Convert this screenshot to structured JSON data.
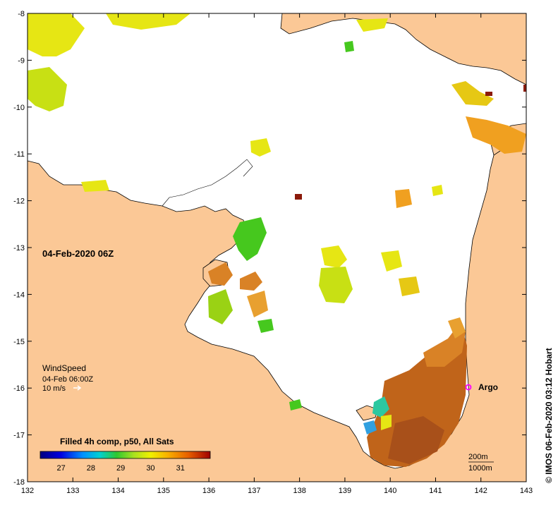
{
  "map": {
    "timestamp_label": "04-Feb-2020 06Z",
    "credit": "© IMOS 06-Feb-2020 03:12 Hobart",
    "lon_ticks": [
      "132",
      "133",
      "134",
      "135",
      "136",
      "137",
      "138",
      "139",
      "140",
      "141",
      "142",
      "143"
    ],
    "lat_ticks": [
      "-8",
      "-9",
      "-10",
      "-11",
      "-12",
      "-13",
      "-14",
      "-15",
      "-16",
      "-17",
      "-18"
    ],
    "lon_range": [
      132,
      143
    ],
    "lat_range": [
      -18,
      -8
    ],
    "wind": {
      "title": "WindSpeed",
      "time": "04-Feb 06:00Z",
      "scale": "10 m/s"
    },
    "argo_label": "Argo",
    "argo_position": {
      "lon": 141.7,
      "lat": -16.0
    },
    "isobaths": [
      "200m",
      "1000m"
    ],
    "colorbar": {
      "title": "Filled 4h comp, p50, All Sats",
      "ticks": [
        "27",
        "28",
        "29",
        "30",
        "31"
      ],
      "range": [
        26.3,
        32.0
      ]
    },
    "colors": {
      "land": "#fbc896",
      "coast": "#000000",
      "sst_warm": "#c0641a",
      "sst_orange": "#f0a020",
      "sst_yellow": "#e6e614",
      "sst_green": "#46c81e",
      "argo": "#ff00ff"
    }
  }
}
